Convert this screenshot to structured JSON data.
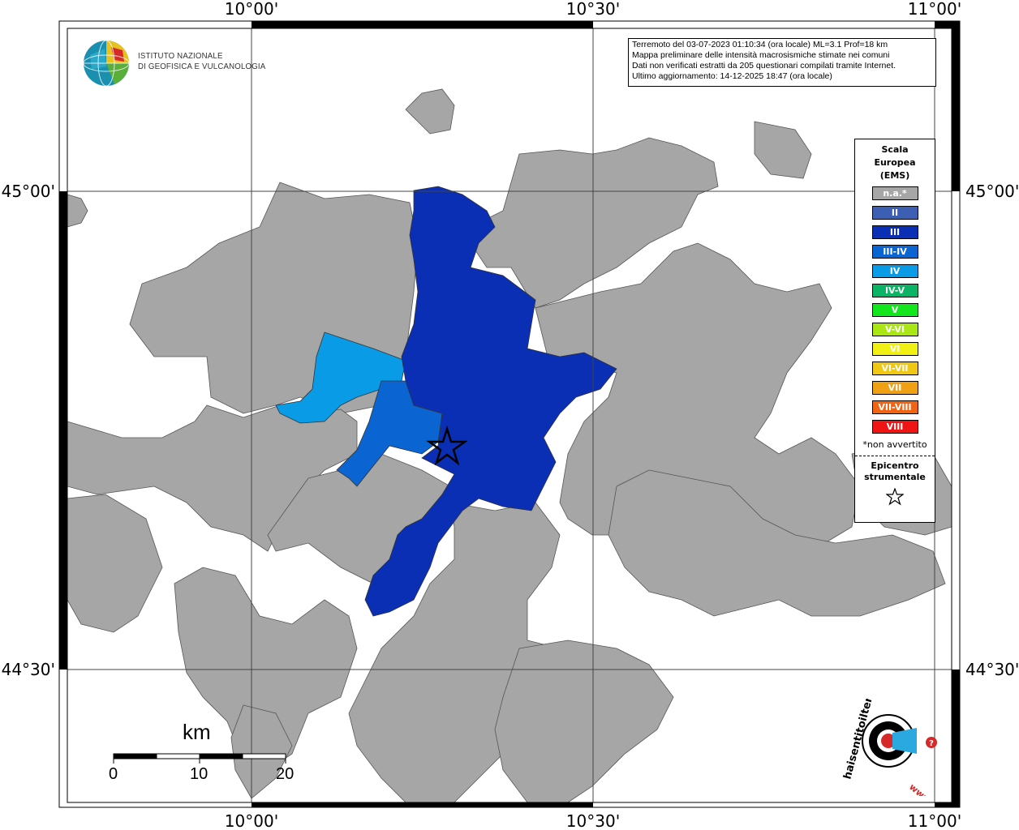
{
  "map": {
    "longitude_labels": [
      "10°00'",
      "10°30'",
      "11°00'"
    ],
    "latitude_labels": [
      "45°00'",
      "44°30'"
    ]
  },
  "info_box": {
    "line1": "Terremoto del 03-07-2023 01:10:34 (ora locale) ML=3.1 Prof=18 km",
    "line2": "Mappa preliminare delle intensità macrosismiche stimate nei comuni",
    "line3": "Dati non verificati estratti da 205 questionari compilati tramite Internet.",
    "line4": "Ultimo aggiornamento: 14-12-2025 18:47 (ora locale)"
  },
  "institute": {
    "line1": "ISTITUTO NAZIONALE",
    "line2": "DI GEOFISICA E VULCANOLOGIA"
  },
  "legend": {
    "title_line1": "Scala",
    "title_line2": "Europea",
    "title_line3": "(EMS)",
    "items": [
      {
        "label": "n.a.*",
        "color": "#a6a6a6"
      },
      {
        "label": "II",
        "color": "#3c5fb4"
      },
      {
        "label": "III",
        "color": "#0a2fb4"
      },
      {
        "label": "III-IV",
        "color": "#0a64d2"
      },
      {
        "label": "IV",
        "color": "#0a9be6"
      },
      {
        "label": "IV-V",
        "color": "#0ab464"
      },
      {
        "label": "V",
        "color": "#14e61e"
      },
      {
        "label": "V-VI",
        "color": "#aae614"
      },
      {
        "label": "VI",
        "color": "#f0f014"
      },
      {
        "label": "VI-VII",
        "color": "#f0c814"
      },
      {
        "label": "VII",
        "color": "#f0a014"
      },
      {
        "label": "VII-VIII",
        "color": "#f06414"
      },
      {
        "label": "VIII",
        "color": "#f01414"
      }
    ],
    "note": "*non avvertito",
    "epicenter_line1": "Epicentro",
    "epicenter_line2": "strumentale"
  },
  "scale_bar": {
    "unit": "km",
    "ticks": [
      "0",
      "10",
      "20"
    ]
  },
  "logo": {
    "text": "haisentitoilterremoto.it",
    "text2": "www."
  },
  "colors": {
    "gray": "#a6a6a6",
    "intensity_III": "#0a2fb4",
    "intensity_III_IV": "#0a64d2",
    "intensity_IV": "#0a9be6"
  }
}
